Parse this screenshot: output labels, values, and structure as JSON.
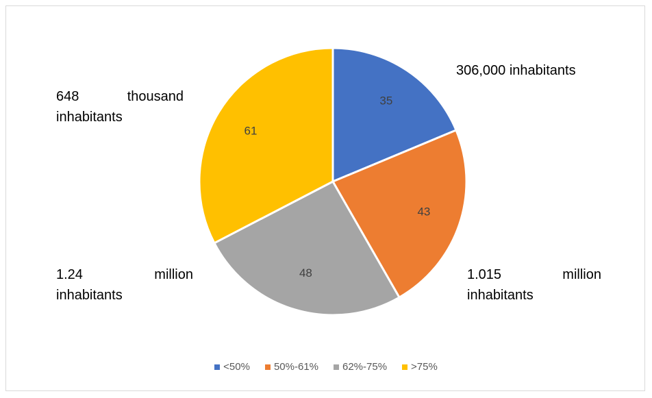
{
  "chart_data": {
    "type": "pie",
    "title": "",
    "categories": [
      "<50%",
      "50%-61%",
      "62%-75%",
      ">75%"
    ],
    "values": [
      35,
      43,
      48,
      61
    ],
    "colors": [
      "#4472C4",
      "#ED7D31",
      "#A5A5A5",
      "#FFC000"
    ],
    "data_labels": [
      "35",
      "43",
      "48",
      "61"
    ],
    "legend_position": "bottom",
    "annotations": [
      {
        "slice": "<50%",
        "lines": [
          "306,000 inhabitants"
        ]
      },
      {
        "slice": "50%-61%",
        "lines": [
          "1.015 million",
          "inhabitants"
        ]
      },
      {
        "slice": "62%-75%",
        "lines": [
          "1.24 million",
          "inhabitants"
        ]
      },
      {
        "slice": ">75%",
        "lines": [
          "648 thousand",
          "inhabitants"
        ]
      }
    ]
  }
}
